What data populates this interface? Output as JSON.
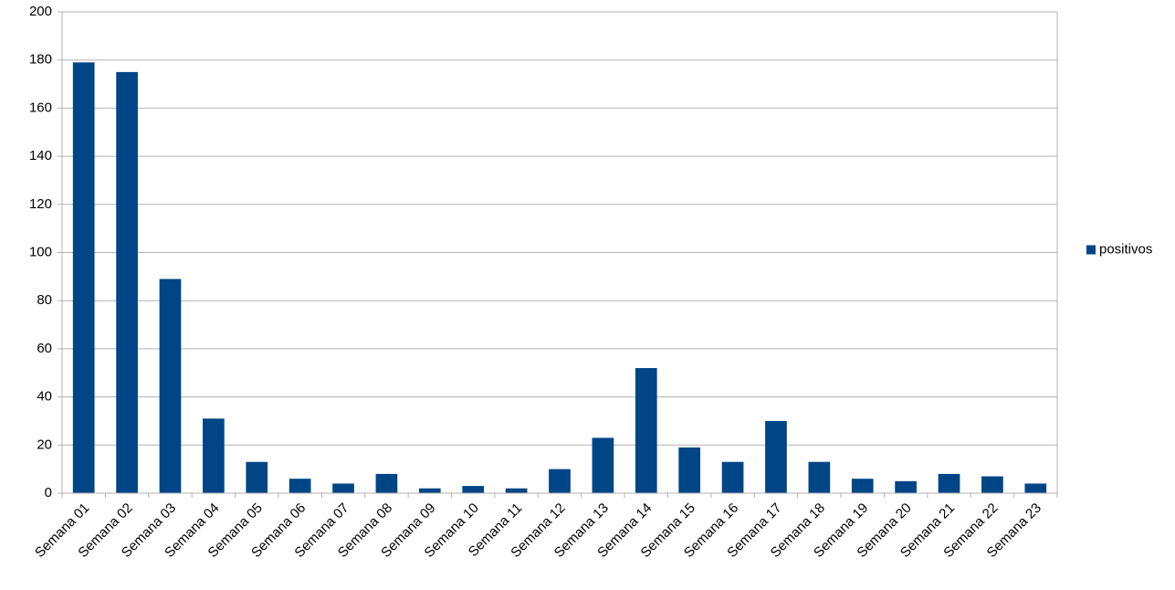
{
  "chart_data": {
    "type": "bar",
    "categories": [
      "Semana 01",
      "Semana 02",
      "Semana 03",
      "Semana 04",
      "Semana 05",
      "Semana 06",
      "Semana 07",
      "Semana 08",
      "Semana 09",
      "Semana 10",
      "Semana 11",
      "Semana 12",
      "Semana 13",
      "Semana 14",
      "Semana 15",
      "Semana 16",
      "Semana 17",
      "Semana 18",
      "Semana 19",
      "Semana 20",
      "Semana 21",
      "Semana 22",
      "Semana 23"
    ],
    "series": [
      {
        "name": "positivos",
        "color": "#004586",
        "values": [
          179,
          175,
          89,
          31,
          13,
          6,
          4,
          8,
          2,
          3,
          2,
          10,
          23,
          52,
          19,
          13,
          30,
          13,
          6,
          5,
          8,
          7,
          4
        ]
      }
    ],
    "ylim": [
      0,
      200
    ],
    "yticks": [
      0,
      20,
      40,
      60,
      80,
      100,
      120,
      140,
      160,
      180,
      200
    ],
    "grid": true,
    "legend": "right"
  }
}
